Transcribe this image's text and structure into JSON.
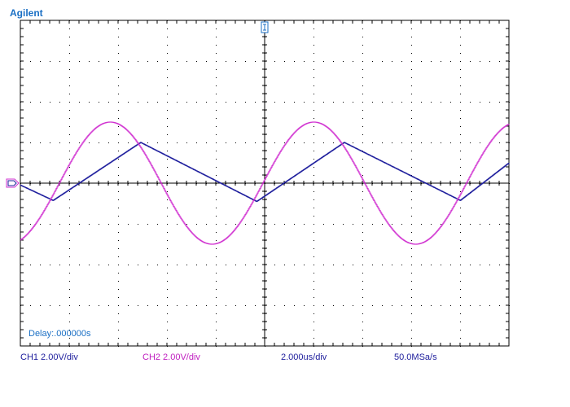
{
  "brand": "Agilent",
  "delay_text": "Delay:.000000s",
  "status": {
    "ch1": "CH1 2.00V/div",
    "ch2": "CH2 2.00V/div",
    "timebase": "2.000us/div",
    "sample_rate": "50.0MSa/s"
  },
  "colors": {
    "ch1": "#1c1c9c",
    "ch2": "#d030d0",
    "grid": "#000000",
    "brand": "#1a6fc4"
  },
  "icons": {
    "trigger_marker": "trigger-level-icon",
    "ground_marker": "ground-reference-icon"
  },
  "chart_data": {
    "type": "line",
    "xlabel": "",
    "ylabel": "",
    "xlim": [
      0,
      24
    ],
    "ylim": [
      -8,
      8
    ],
    "grid": true,
    "x_unit": "us",
    "y_unit": "V",
    "series": [
      {
        "channel": "CH1",
        "shape": "triangle",
        "x": [
          0.0,
          1.6,
          5.9,
          11.6,
          15.9,
          21.6,
          24.0
        ],
        "y": [
          -0.1,
          -0.85,
          2.0,
          -0.9,
          2.0,
          -0.85,
          1.0
        ]
      },
      {
        "channel": "CH2",
        "shape": "sine",
        "amplitude": 3.0,
        "period_us": 10.0,
        "peak_x": [
          4.4,
          14.4
        ],
        "trough_x": [
          9.4,
          19.4
        ],
        "x": [
          0.0,
          1.9,
          4.4,
          6.9,
          9.4,
          11.9,
          14.4,
          16.9,
          19.4,
          21.9,
          24.0
        ],
        "y": [
          -2.8,
          0.0,
          3.0,
          0.0,
          -3.0,
          0.0,
          3.0,
          0.0,
          -3.0,
          0.0,
          2.9
        ]
      }
    ]
  }
}
